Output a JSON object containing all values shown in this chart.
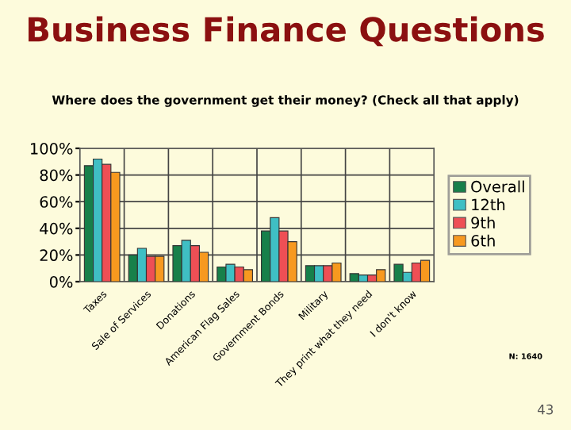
{
  "chart_data": {
    "type": "bar",
    "title": "Business Finance Questions",
    "subtitle": "Where does the government get their money? (Check all that apply)",
    "categories": [
      "Taxes",
      "Sale of Services",
      "Donations",
      "American Flag Sales",
      "Government Bonds",
      "Military",
      "They print what they need",
      "I don't know"
    ],
    "series": [
      {
        "name": "Overall",
        "color": "#17804a",
        "values": [
          87,
          20,
          27,
          11,
          38,
          12,
          6,
          13
        ]
      },
      {
        "name": "12th",
        "color": "#3fbfc4",
        "values": [
          92,
          25,
          31,
          13,
          48,
          12,
          5,
          7
        ]
      },
      {
        "name": "9th",
        "color": "#ee4f55",
        "values": [
          88,
          19,
          27,
          11,
          38,
          12,
          5,
          14
        ]
      },
      {
        "name": "6th",
        "color": "#f7991f",
        "values": [
          82,
          19,
          22,
          9,
          30,
          14,
          9,
          16
        ]
      }
    ],
    "ylim": [
      0,
      100
    ],
    "yticks": [
      {
        "value": 0,
        "label": "0%"
      },
      {
        "value": 20,
        "label": "20%"
      },
      {
        "value": 40,
        "label": "40%"
      },
      {
        "value": 60,
        "label": "60%"
      },
      {
        "value": 80,
        "label": "80%"
      },
      {
        "value": 100,
        "label": "100%"
      }
    ],
    "grid": true,
    "legend": "right",
    "annotations": [
      "N: 1640",
      "43"
    ]
  }
}
